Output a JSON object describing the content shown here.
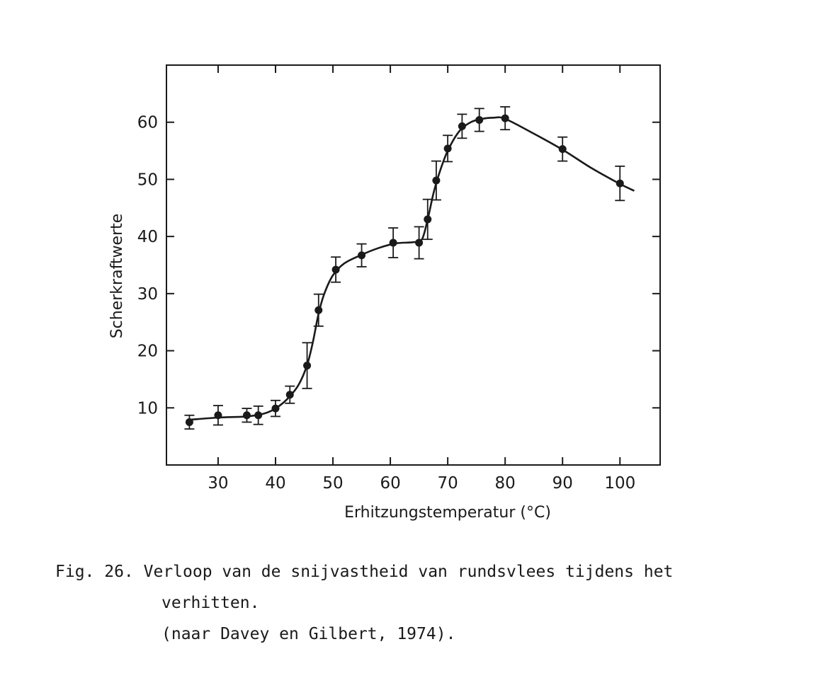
{
  "chart_data": {
    "type": "line",
    "xlabel": "Erhitzungstemperatur (°C)",
    "ylabel": "Scherkraftwerte",
    "xlim": [
      21,
      107
    ],
    "ylim": [
      0,
      70
    ],
    "x_ticks": [
      30,
      40,
      50,
      60,
      70,
      80,
      90,
      100
    ],
    "y_ticks": [
      10,
      20,
      30,
      40,
      50,
      60
    ],
    "grid": false,
    "error_bars": true,
    "series": [
      {
        "points": [
          {
            "x": 25,
            "y": 7.5,
            "err": 1.2
          },
          {
            "x": 30,
            "y": 8.7,
            "err": 1.7
          },
          {
            "x": 35,
            "y": 8.7,
            "err": 1.2
          },
          {
            "x": 37,
            "y": 8.7,
            "err": 1.6
          },
          {
            "x": 40,
            "y": 9.9,
            "err": 1.4
          },
          {
            "x": 42.5,
            "y": 12.3,
            "err": 1.5
          },
          {
            "x": 45.5,
            "y": 17.4,
            "err": 4.0
          },
          {
            "x": 47.5,
            "y": 27.1,
            "err": 2.8
          },
          {
            "x": 50.5,
            "y": 34.2,
            "err": 2.2
          },
          {
            "x": 55,
            "y": 36.7,
            "err": 2.0
          },
          {
            "x": 60.5,
            "y": 38.9,
            "err": 2.6
          },
          {
            "x": 65,
            "y": 38.9,
            "err": 2.8
          },
          {
            "x": 66.5,
            "y": 43.0,
            "err": 3.5
          },
          {
            "x": 68,
            "y": 49.8,
            "err": 3.4
          },
          {
            "x": 70,
            "y": 55.4,
            "err": 2.3
          },
          {
            "x": 72.5,
            "y": 59.3,
            "err": 2.1
          },
          {
            "x": 75.5,
            "y": 60.4,
            "err": 2.0
          },
          {
            "x": 80,
            "y": 60.7,
            "err": 2.0
          },
          {
            "x": 90,
            "y": 55.3,
            "err": 2.1
          },
          {
            "x": 100,
            "y": 49.3,
            "err": 3.0
          }
        ],
        "curve": [
          [
            25,
            7.9
          ],
          [
            30,
            8.3
          ],
          [
            35,
            8.5
          ],
          [
            38,
            9.0
          ],
          [
            40,
            9.9
          ],
          [
            42,
            11.5
          ],
          [
            44,
            14.0
          ],
          [
            45.5,
            17.5
          ],
          [
            46.5,
            21.5
          ],
          [
            47.5,
            26.5
          ],
          [
            48.5,
            30.0
          ],
          [
            50,
            33.2
          ],
          [
            52,
            35.3
          ],
          [
            55,
            36.8
          ],
          [
            58,
            38.0
          ],
          [
            61,
            38.8
          ],
          [
            64,
            39.0
          ],
          [
            65.5,
            39.5
          ],
          [
            66.5,
            43.0
          ],
          [
            67.5,
            47.5
          ],
          [
            68.5,
            51.0
          ],
          [
            70,
            55.0
          ],
          [
            72,
            58.4
          ],
          [
            74,
            60.0
          ],
          [
            76,
            60.6
          ],
          [
            78,
            60.8
          ],
          [
            80,
            60.6
          ],
          [
            85,
            58.0
          ],
          [
            90,
            55.2
          ],
          [
            95,
            52.0
          ],
          [
            100,
            49.2
          ],
          [
            102.5,
            48.0
          ]
        ]
      }
    ]
  },
  "caption": {
    "label": "Fig. 26.",
    "line1": "Verloop van de snijvastheid van rundsvlees tijdens het",
    "line2": "verhitten.",
    "line3": "(naar Davey en Gilbert, 1974)."
  }
}
